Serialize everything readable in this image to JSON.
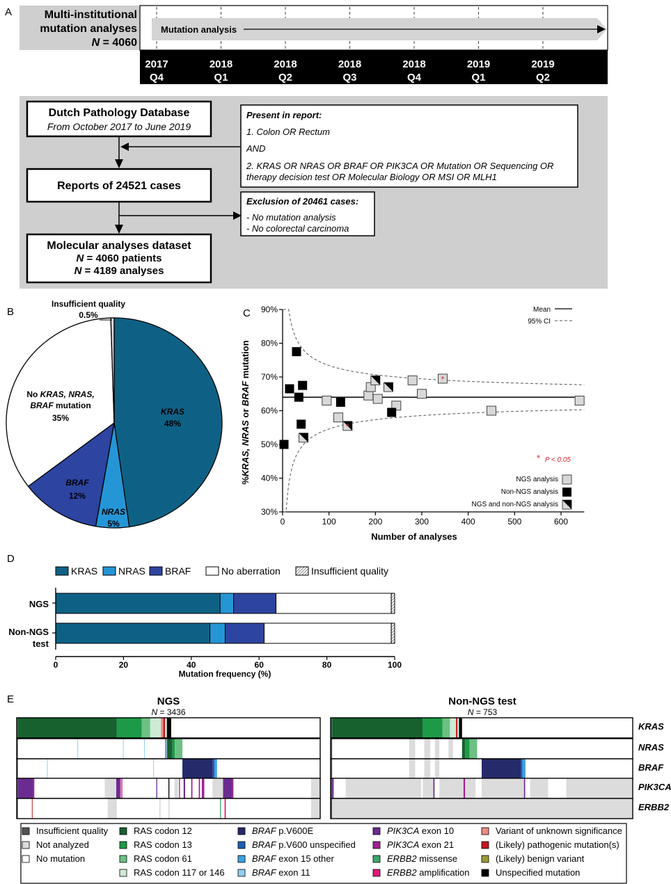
{
  "panelA": {
    "label": "A",
    "title_l1": "Multi-institutional",
    "title_l2": "mutation analyses",
    "n_prefix": "N",
    "n_value": " = 4060",
    "arrow_label": "Mutation analysis",
    "timeline": [
      {
        "year": "2017",
        "q": "Q4"
      },
      {
        "year": "2018",
        "q": "Q1"
      },
      {
        "year": "2018",
        "q": "Q2"
      },
      {
        "year": "2018",
        "q": "Q3"
      },
      {
        "year": "2018",
        "q": "Q4"
      },
      {
        "year": "2019",
        "q": "Q1"
      },
      {
        "year": "2019",
        "q": "Q2"
      }
    ],
    "db_title": "Dutch Pathology Database",
    "db_sub": "From October 2017 to June 2019",
    "reports": "Reports of 24521 cases",
    "mol_title": "Molecular analyses dataset",
    "mol_n1_italic": "N",
    "mol_n1": " = 4060 patients",
    "mol_n2_italic": "N",
    "mol_n2": " = 4189 analyses",
    "present_title": "Present in report:",
    "present_1": "1. Colon OR Rectum",
    "present_and": "AND",
    "present_2a": "2. KRAS OR NRAS OR BRAF OR PIK3CA OR Mutation OR Sequencing OR",
    "present_2b": "therapy decision test OR Molecular Biology OR MSI OR MLH1",
    "excl_title": "Exclusion of  20461 cases:",
    "excl_1": "- No mutation analysis",
    "excl_2": "- No colorectal carcinoma"
  },
  "panelB": {
    "label": "B",
    "colors": {
      "kras": "#0e6185",
      "nras": "#2496d6",
      "braf": "#2d44a0",
      "none": "#ffffff",
      "insuff": "#d6d6d6"
    },
    "insuff_label": "Insufficient quality",
    "insuff_pct": "0.5%",
    "no_l1a": "No ",
    "no_l1b": "KRAS, NRAS,",
    "no_l2a": "BRAF",
    "no_l2b": " mutation",
    "no_pct": "35%",
    "kras_label": "KRAS",
    "kras_pct": "48%",
    "braf_label": "BRAF",
    "braf_pct": "12%",
    "nras_label": "NRAS",
    "nras_pct": "5%"
  },
  "panelC": {
    "label": "C",
    "ylabel_a": "%",
    "ylabel_b": "KRAS, NRAS",
    "ylabel_c": " or ",
    "ylabel_d": "BRAF",
    "ylabel_e": " mutation",
    "xlabel": "Number of analyses",
    "legend_mean": "Mean",
    "legend_ci": "95% CI",
    "pval_star": "*",
    "pval_text": "P < 0.05",
    "leg_ngs": "NGS analysis",
    "leg_non": "Non-NGS analysis",
    "leg_both": "NGS and non-NGS analysis"
  },
  "panelD": {
    "label": "D",
    "legend": [
      "KRAS",
      "NRAS",
      "BRAF",
      "No aberration",
      "Insufficient quality"
    ],
    "row1": "NGS",
    "row2a": "Non-NGS",
    "row2b": "test",
    "xlabel": "Mutation frequency (%)",
    "xticks": [
      "0",
      "20",
      "40",
      "60",
      "80",
      "100"
    ]
  },
  "panelE": {
    "label": "E",
    "ngs_title": "NGS",
    "ngs_n_italic": "N",
    "ngs_n": " = 3436",
    "non_title": "Non-NGS test",
    "non_n_italic": "N",
    "non_n": " = 753",
    "genes": [
      "KRAS",
      "NRAS",
      "BRAF",
      "PIK3CA",
      "ERBB2"
    ],
    "legend": [
      {
        "pre": "",
        "it": "",
        "txt": "Insufficient quality",
        "color": "#555555"
      },
      {
        "pre": "",
        "it": "",
        "txt": "Not analyzed",
        "color": "#dcdcdc"
      },
      {
        "pre": "",
        "it": "",
        "txt": "No mutation",
        "color": "#ffffff"
      },
      {
        "pre": "",
        "it": "",
        "txt": "RAS codon 12",
        "color": "#17612e"
      },
      {
        "pre": "",
        "it": "",
        "txt": "RAS codon 13",
        "color": "#1d9a47"
      },
      {
        "pre": "",
        "it": "",
        "txt": "RAS codon 61",
        "color": "#6cc084"
      },
      {
        "pre": "",
        "it": "",
        "txt": "RAS codon 117 or 146",
        "color": "#cdebd4"
      },
      {
        "pre": "",
        "it": "BRAF",
        "txt": " p.V600E",
        "color": "#252a6a"
      },
      {
        "pre": "",
        "it": "BRAF",
        "txt": " p.V600 unspecified",
        "color": "#1c5fb3"
      },
      {
        "pre": "",
        "it": "BRAF",
        "txt": " exon 15 other",
        "color": "#3aa3e2"
      },
      {
        "pre": "",
        "it": "BRAF",
        "txt": " exon 11",
        "color": "#8fd0f0"
      },
      {
        "pre": "",
        "it": "PIK3CA",
        "txt": " exon 10",
        "color": "#6b2c91"
      },
      {
        "pre": "",
        "it": "PIK3CA",
        "txt": " exon 21",
        "color": "#a0218e"
      },
      {
        "pre": "",
        "it": "ERBB2",
        "txt": " missense",
        "color": "#3aa86b"
      },
      {
        "pre": "",
        "it": "ERBB2",
        "txt": " amplification",
        "color": "#e0197d"
      },
      {
        "pre": "",
        "it": "",
        "txt": "Variant of unknown significance",
        "color": "#f08a84"
      },
      {
        "pre": "",
        "it": "",
        "txt": "(Likely) pathogenic mutation(s)",
        "color": "#c0191f"
      },
      {
        "pre": "",
        "it": "",
        "txt": "(Likely) benign variant",
        "color": "#9a9a3a"
      },
      {
        "pre": "",
        "it": "",
        "txt": "Unspecified mutation",
        "color": "#000000"
      }
    ]
  },
  "chart_data": [
    {
      "type": "pie",
      "categories": [
        "KRAS",
        "NRAS",
        "BRAF",
        "No KRAS, NRAS, BRAF mutation",
        "Insufficient quality"
      ],
      "values": [
        48,
        5,
        12,
        35,
        0.5
      ]
    },
    {
      "type": "scatter",
      "xlabel": "Number of analyses",
      "ylabel": "%KRAS, NRAS or BRAF mutation",
      "xlim": [
        0,
        650
      ],
      "ylim": [
        30,
        90
      ],
      "xticks": [
        0,
        100,
        200,
        300,
        400,
        500,
        600
      ],
      "yticks": [
        30,
        40,
        50,
        60,
        70,
        80,
        90
      ],
      "mean": 64,
      "series": [
        {
          "name": "NGS analysis",
          "points": [
            [
              95,
              63
            ],
            [
              120,
              58
            ],
            [
              185,
              64.5
            ],
            [
              190,
              67
            ],
            [
              205,
              63.5
            ],
            [
              245,
              61.5
            ],
            [
              280,
              69
            ],
            [
              300,
              65
            ],
            [
              345,
              69.5
            ],
            [
              450,
              60
            ],
            [
              640,
              63
            ]
          ]
        },
        {
          "name": "Non-NGS analysis",
          "points": [
            [
              3,
              50
            ],
            [
              15,
              66.5
            ],
            [
              30,
              77.5
            ],
            [
              35,
              64
            ],
            [
              40,
              56
            ],
            [
              43,
              67.5
            ],
            [
              125,
              62.5
            ],
            [
              235,
              59.5
            ]
          ]
        },
        {
          "name": "NGS and non-NGS analysis",
          "points": [
            [
              45,
              52
            ],
            [
              140,
              55.5
            ],
            [
              200,
              69
            ],
            [
              228,
              67
            ]
          ]
        }
      ],
      "significant_points": [
        [
          345,
          69.5
        ],
        [
          140,
          55.5
        ]
      ]
    },
    {
      "type": "bar",
      "orientation": "horizontal",
      "stacked": true,
      "categories": [
        "NGS",
        "Non-NGS test"
      ],
      "xlabel": "Mutation frequency (%)",
      "xlim": [
        0,
        100
      ],
      "series": [
        {
          "name": "KRAS",
          "values": [
            48.5,
            45.5
          ]
        },
        {
          "name": "NRAS",
          "values": [
            4,
            4.5
          ]
        },
        {
          "name": "BRAF",
          "values": [
            12.5,
            11.5
          ]
        },
        {
          "name": "No aberration",
          "values": [
            34,
            37.5
          ]
        },
        {
          "name": "Insufficient quality",
          "values": [
            1,
            1
          ]
        }
      ]
    }
  ]
}
